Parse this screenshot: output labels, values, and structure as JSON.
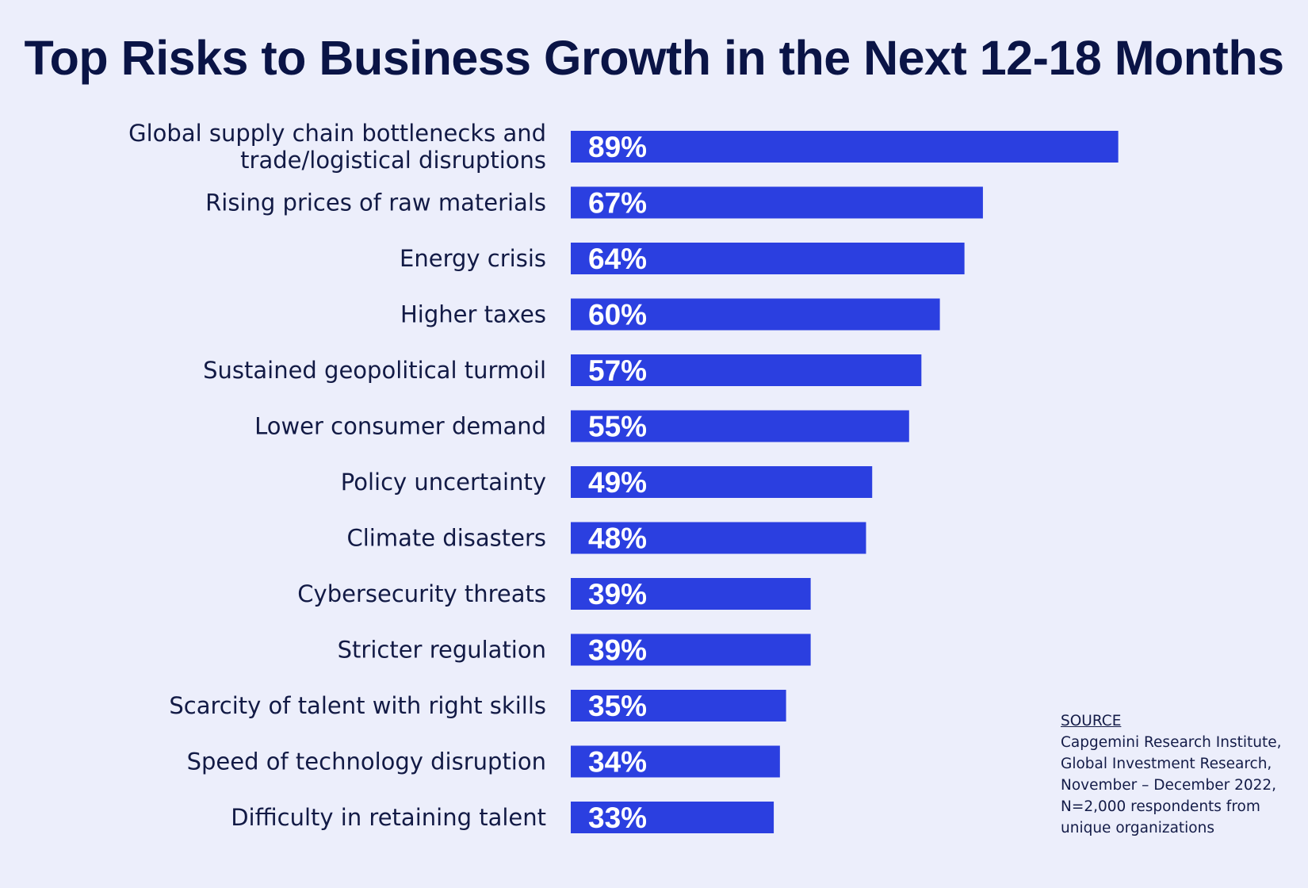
{
  "title": "Top Risks to Business Growth in the Next 12-18 Months",
  "colors": {
    "bar": "#2b3fe0",
    "background": "#eceefb",
    "text": "#0d1640"
  },
  "chart_data": {
    "type": "bar",
    "orientation": "horizontal",
    "title": "Top Risks to Business Growth in the Next 12-18 Months",
    "categories": [
      [
        "Global supply chain bottlenecks and",
        "trade/logistical disruptions"
      ],
      [
        "Rising prices of raw materials"
      ],
      [
        "Energy crisis"
      ],
      [
        "Higher taxes"
      ],
      [
        "Sustained geopolitical turmoil"
      ],
      [
        "Lower consumer demand"
      ],
      [
        "Policy uncertainty"
      ],
      [
        "Climate disasters"
      ],
      [
        "Cybersecurity threats"
      ],
      [
        "Stricter regulation"
      ],
      [
        "Scarcity of talent with right skills"
      ],
      [
        "Speed of technology disruption"
      ],
      [
        "Difficulty in retaining talent"
      ]
    ],
    "values": [
      89,
      67,
      64,
      60,
      57,
      55,
      49,
      48,
      39,
      39,
      35,
      34,
      33
    ],
    "value_labels": [
      "89%",
      "67%",
      "64%",
      "60%",
      "57%",
      "55%",
      "49%",
      "48%",
      "39%",
      "39%",
      "35%",
      "34%",
      "33%"
    ],
    "unit": "%",
    "xlim": [
      0,
      100
    ],
    "grid": false,
    "legend": "none"
  },
  "source": {
    "heading": "SOURCE",
    "lines": [
      "Capgemini Research Institute,",
      "Global Investment Research,",
      "November – December 2022,",
      "N=2,000 respondents from",
      "unique organizations"
    ]
  }
}
